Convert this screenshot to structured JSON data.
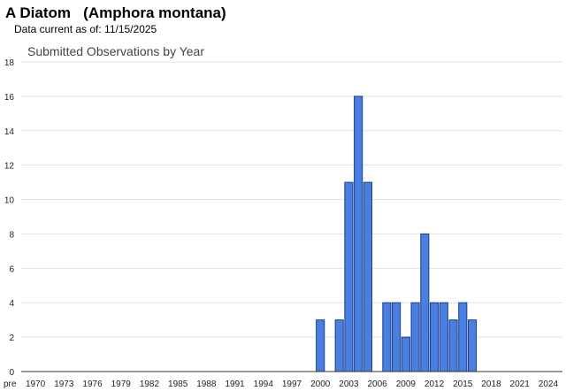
{
  "page": {
    "title": "A Diatom   (Amphora montana)",
    "subtitle": "Data current as of: 11/15/2025"
  },
  "chart_data": {
    "type": "bar",
    "title": "Submitted Observations by Year",
    "xlabel": "",
    "ylabel": "",
    "ylim": [
      0,
      18
    ],
    "yticks": [
      0,
      2,
      4,
      6,
      8,
      10,
      12,
      14,
      16,
      18
    ],
    "grid": true,
    "legend": "none",
    "bar_color": "#4a7fe0",
    "bar_border_color": "#1a3c8f",
    "categories": [
      "pre",
      "1970",
      "1971",
      "1972",
      "1973",
      "1974",
      "1975",
      "1976",
      "1977",
      "1978",
      "1979",
      "1980",
      "1981",
      "1982",
      "1983",
      "1984",
      "1985",
      "1986",
      "1987",
      "1988",
      "1989",
      "1990",
      "1991",
      "1992",
      "1993",
      "1994",
      "1995",
      "1996",
      "1997",
      "1998",
      "1999",
      "2000",
      "2001",
      "2002",
      "2003",
      "2004",
      "2005",
      "2006",
      "2007",
      "2008",
      "2009",
      "2010",
      "2011",
      "2012",
      "2013",
      "2014",
      "2015",
      "2016",
      "2017",
      "2018",
      "2019",
      "2020",
      "2021",
      "2022",
      "2023",
      "2024",
      "2025"
    ],
    "tick_labels": [
      "pre",
      "1970",
      "1973",
      "1976",
      "1979",
      "1982",
      "1985",
      "1988",
      "1991",
      "1994",
      "1997",
      "2000",
      "2003",
      "2006",
      "2009",
      "2012",
      "2015",
      "2018",
      "2021",
      "2024"
    ],
    "values": [
      0,
      0,
      0,
      0,
      0,
      0,
      0,
      0,
      0,
      0,
      0,
      0,
      0,
      0,
      0,
      0,
      0,
      0,
      0,
      0,
      0,
      0,
      0,
      0,
      0,
      0,
      0,
      0,
      0,
      0,
      0,
      3,
      0,
      3,
      11,
      16,
      11,
      0,
      4,
      4,
      2,
      4,
      8,
      4,
      4,
      3,
      4,
      3,
      0,
      0,
      0,
      0,
      0,
      0,
      0,
      0,
      0
    ]
  }
}
